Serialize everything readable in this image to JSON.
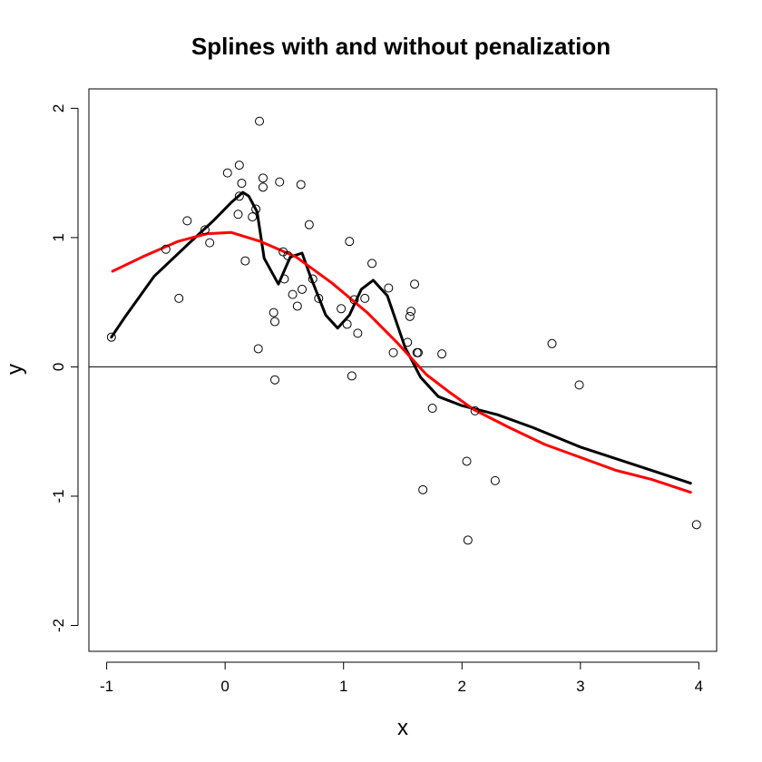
{
  "chart_data": {
    "type": "scatter",
    "title": "Splines with and without penalization",
    "xlabel": "x",
    "ylabel": "y",
    "xlim": [
      -1.15,
      4.15
    ],
    "ylim": [
      -2.2,
      2.15
    ],
    "x_ticks": [
      -1,
      0,
      1,
      2,
      3,
      4
    ],
    "x_tick_labels": [
      "-1",
      "0",
      "1",
      "2",
      "3",
      "4"
    ],
    "y_ticks": [
      -2,
      -1,
      0,
      1,
      2
    ],
    "y_tick_labels": [
      "-2",
      "-1",
      "0",
      "1",
      "2"
    ],
    "hline": 0,
    "grid": false,
    "points": [
      [
        -0.96,
        0.23
      ],
      [
        -0.5,
        0.91
      ],
      [
        -0.39,
        0.53
      ],
      [
        -0.32,
        1.13
      ],
      [
        -0.17,
        1.06
      ],
      [
        -0.13,
        0.96
      ],
      [
        0.02,
        1.5
      ],
      [
        0.12,
        1.56
      ],
      [
        0.11,
        1.18
      ],
      [
        0.12,
        1.32
      ],
      [
        0.14,
        1.42
      ],
      [
        0.17,
        0.82
      ],
      [
        0.23,
        1.16
      ],
      [
        0.26,
        1.22
      ],
      [
        0.28,
        0.14
      ],
      [
        0.29,
        1.9
      ],
      [
        0.32,
        1.46
      ],
      [
        0.32,
        1.39
      ],
      [
        0.41,
        0.42
      ],
      [
        0.42,
        0.35
      ],
      [
        0.42,
        -0.1
      ],
      [
        0.46,
        1.43
      ],
      [
        0.49,
        0.89
      ],
      [
        0.5,
        0.68
      ],
      [
        0.53,
        0.86
      ],
      [
        0.57,
        0.56
      ],
      [
        0.61,
        0.47
      ],
      [
        0.64,
        1.41
      ],
      [
        0.65,
        0.6
      ],
      [
        0.71,
        1.1
      ],
      [
        0.74,
        0.68
      ],
      [
        0.79,
        0.53
      ],
      [
        0.98,
        0.45
      ],
      [
        1.03,
        0.33
      ],
      [
        1.05,
        0.97
      ],
      [
        1.07,
        -0.07
      ],
      [
        1.09,
        0.52
      ],
      [
        1.12,
        0.26
      ],
      [
        1.18,
        0.53
      ],
      [
        1.24,
        0.8
      ],
      [
        1.38,
        0.61
      ],
      [
        1.42,
        0.11
      ],
      [
        1.54,
        0.19
      ],
      [
        1.56,
        0.39
      ],
      [
        1.57,
        0.43
      ],
      [
        1.6,
        0.64
      ],
      [
        1.62,
        0.11
      ],
      [
        1.63,
        0.11
      ],
      [
        1.67,
        -0.95
      ],
      [
        1.75,
        -0.32
      ],
      [
        1.83,
        0.1
      ],
      [
        2.04,
        -0.73
      ],
      [
        2.05,
        -1.34
      ],
      [
        2.11,
        -0.34
      ],
      [
        2.28,
        -0.88
      ],
      [
        2.76,
        0.18
      ],
      [
        2.99,
        -0.14
      ],
      [
        3.98,
        -1.22
      ]
    ],
    "series": [
      {
        "color": "#000000",
        "points": [
          [
            -0.96,
            0.23
          ],
          [
            -0.85,
            0.38
          ],
          [
            -0.6,
            0.7
          ],
          [
            -0.3,
            0.96
          ],
          [
            -0.1,
            1.13
          ],
          [
            0.05,
            1.27
          ],
          [
            0.15,
            1.35
          ],
          [
            0.2,
            1.32
          ],
          [
            0.27,
            1.2
          ],
          [
            0.33,
            0.84
          ],
          [
            0.45,
            0.64
          ],
          [
            0.55,
            0.85
          ],
          [
            0.65,
            0.88
          ],
          [
            0.72,
            0.7
          ],
          [
            0.85,
            0.4
          ],
          [
            0.95,
            0.3
          ],
          [
            1.05,
            0.4
          ],
          [
            1.15,
            0.6
          ],
          [
            1.25,
            0.67
          ],
          [
            1.37,
            0.55
          ],
          [
            1.52,
            0.15
          ],
          [
            1.65,
            -0.08
          ],
          [
            1.8,
            -0.23
          ],
          [
            2.0,
            -0.3
          ],
          [
            2.3,
            -0.37
          ],
          [
            2.6,
            -0.47
          ],
          [
            3.0,
            -0.62
          ],
          [
            3.5,
            -0.77
          ],
          [
            3.93,
            -0.9
          ]
        ]
      },
      {
        "color": "#ff0000",
        "points": [
          [
            -0.95,
            0.74
          ],
          [
            -0.7,
            0.85
          ],
          [
            -0.4,
            0.97
          ],
          [
            -0.15,
            1.03
          ],
          [
            0.05,
            1.04
          ],
          [
            0.3,
            0.97
          ],
          [
            0.6,
            0.85
          ],
          [
            0.9,
            0.65
          ],
          [
            1.2,
            0.42
          ],
          [
            1.45,
            0.19
          ],
          [
            1.7,
            -0.06
          ],
          [
            1.9,
            -0.2
          ],
          [
            2.1,
            -0.33
          ],
          [
            2.4,
            -0.47
          ],
          [
            2.7,
            -0.6
          ],
          [
            3.0,
            -0.7
          ],
          [
            3.3,
            -0.8
          ],
          [
            3.6,
            -0.87
          ],
          [
            3.93,
            -0.97
          ]
        ]
      }
    ]
  }
}
